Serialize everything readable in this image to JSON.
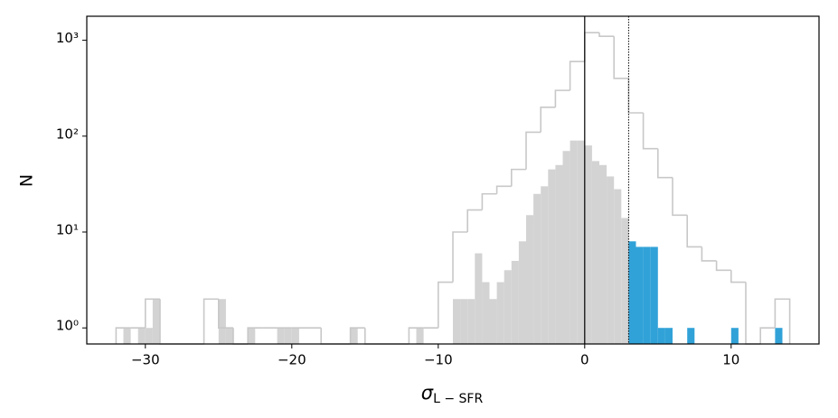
{
  "chart_data": {
    "type": "histogram",
    "xlabel": "σ",
    "xlabel_subscript": "L − SFR",
    "ylabel": "N",
    "xlim": [
      -34,
      16
    ],
    "ylim": [
      0.68,
      1780
    ],
    "yscale": "log",
    "xticks": [
      {
        "value": -30,
        "label": "−30"
      },
      {
        "value": -20,
        "label": "−20"
      },
      {
        "value": -10,
        "label": "−10"
      },
      0,
      10
    ],
    "yticks": [
      {
        "value": 1,
        "label": "10⁰"
      },
      {
        "value": 10,
        "label": "10¹"
      },
      {
        "value": 100,
        "label": "10²"
      },
      {
        "value": 1000,
        "label": "10³"
      }
    ],
    "histograms": [
      {
        "style": "filled",
        "color": "#d3d3d3",
        "bins": [
          -32,
          -31.5,
          -31,
          -30.5,
          -30,
          -29.5,
          -29,
          -28.5,
          -28,
          -27.5,
          -27,
          -26.5,
          -26,
          -25.5,
          -25,
          -24.5,
          -24,
          -23.5,
          -23,
          -22.5,
          -22,
          -21.5,
          -21,
          -20.5,
          -20,
          -19.5,
          -19,
          -18.5,
          -18,
          -17.5,
          -17,
          -16.5,
          -16,
          -15.5,
          -15,
          -14.5,
          -14,
          -13.5,
          -13,
          -12.5,
          -12,
          -11.5,
          -11,
          -10.5,
          -10,
          -9.5,
          -9,
          -8.5,
          -8,
          -7.5,
          -7,
          -6.5,
          -6,
          -5.5,
          -5,
          -4.5,
          -4,
          -3.5,
          -3,
          -2.5,
          -2,
          -1.5,
          -1,
          -0.5,
          0,
          0.5,
          1,
          1.5,
          2,
          2.5,
          3
        ],
        "counts": [
          0,
          1,
          0,
          1,
          1,
          2,
          0,
          0,
          0,
          0,
          0,
          0,
          0,
          0,
          2,
          1,
          0,
          0,
          1,
          0,
          0,
          0,
          1,
          1,
          1,
          0,
          0,
          0,
          0,
          0,
          0,
          0,
          1,
          0,
          0,
          0,
          0,
          0,
          0,
          0,
          0,
          1,
          0,
          0,
          0,
          0,
          2,
          2,
          2,
          6,
          3,
          2,
          3,
          4,
          5,
          8,
          15,
          25,
          30,
          45,
          50,
          70,
          90,
          90,
          80,
          55,
          50,
          38,
          28,
          14
        ]
      },
      {
        "style": "filled",
        "color": "#31a2d8",
        "bins": [
          3,
          3.5,
          4,
          4.5,
          5,
          5.5,
          6,
          6.5,
          7,
          7.5,
          8,
          8.5,
          9,
          9.5,
          10,
          10.5,
          11,
          11.5,
          12,
          12.5,
          13,
          13.5
        ],
        "counts": [
          8,
          7,
          7,
          7,
          1,
          1,
          0,
          0,
          1,
          0,
          0,
          0,
          0,
          0,
          1,
          0,
          0,
          0,
          0,
          0,
          1
        ]
      },
      {
        "style": "step",
        "color": "#c8c8c8",
        "bins": [
          -32,
          -31,
          -30,
          -29,
          -28,
          -27,
          -26,
          -25,
          -24,
          -23,
          -22,
          -21,
          -20,
          -19,
          -18,
          -17,
          -16,
          -15,
          -14,
          -13,
          -12,
          -11,
          -10,
          -9,
          -8,
          -7,
          -6,
          -5,
          -4,
          -3,
          -2,
          -1,
          0,
          1,
          2,
          3,
          4,
          5,
          6,
          7,
          8,
          9,
          10,
          11,
          12,
          13,
          14
        ],
        "counts": [
          1,
          1,
          2,
          0,
          0,
          0,
          2,
          1,
          0,
          1,
          1,
          1,
          1,
          1,
          0,
          0,
          1,
          0,
          0,
          0,
          1,
          1,
          3,
          10,
          17,
          25,
          30,
          45,
          110,
          200,
          300,
          600,
          1200,
          1100,
          400,
          175,
          74,
          37,
          15,
          7,
          5,
          4,
          3,
          0,
          1,
          2
        ]
      }
    ],
    "vlines": [
      {
        "x": 0,
        "style": "solid",
        "color": "#000000"
      },
      {
        "x": 3,
        "style": "dotted",
        "color": "#000000"
      }
    ]
  }
}
